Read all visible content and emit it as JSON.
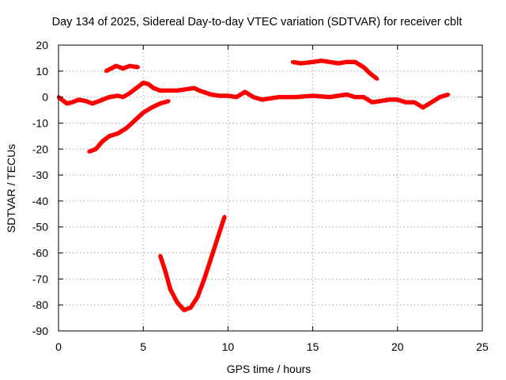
{
  "chart_data": {
    "type": "scatter",
    "title": "Day 134 of 2025, Sidereal Day-to-day VTEC variation (SDTVAR) for receiver cblt",
    "xlabel": "GPS time / hours",
    "ylabel": "SDTVAR / TECUs",
    "xlim": [
      0,
      25
    ],
    "ylim": [
      -90,
      20
    ],
    "xticks": [
      0,
      5,
      10,
      15,
      20,
      25
    ],
    "yticks": [
      20,
      10,
      0,
      -10,
      -20,
      -30,
      -40,
      -50,
      -60,
      -70,
      -80,
      -90
    ],
    "grid": true,
    "series_color": "#ff0000",
    "series": [
      {
        "name": "main",
        "points": [
          [
            0,
            0
          ],
          [
            0.2,
            -1
          ],
          [
            0.5,
            -2.5
          ],
          [
            0.8,
            -2
          ],
          [
            1.2,
            -1
          ],
          [
            1.6,
            -1.5
          ],
          [
            2.0,
            -2.5
          ],
          [
            2.4,
            -1.5
          ],
          [
            3.0,
            0
          ],
          [
            3.5,
            0.5
          ],
          [
            3.8,
            0
          ],
          [
            4.2,
            1.5
          ],
          [
            4.6,
            3.5
          ],
          [
            5.0,
            5.5
          ],
          [
            5.3,
            5
          ],
          [
            5.6,
            3.5
          ],
          [
            6.0,
            2.5
          ],
          [
            7.0,
            2.5
          ],
          [
            7.5,
            3
          ],
          [
            8.0,
            3.5
          ],
          [
            8.3,
            2.5
          ],
          [
            9.0,
            1
          ],
          [
            9.5,
            0.5
          ],
          [
            10.0,
            0.5
          ],
          [
            10.5,
            0
          ],
          [
            11.0,
            2
          ],
          [
            11.5,
            0
          ],
          [
            12.0,
            -1
          ],
          [
            13.0,
            0
          ],
          [
            14.0,
            0
          ],
          [
            15.0,
            0.5
          ],
          [
            16.0,
            0
          ],
          [
            17.0,
            1
          ],
          [
            17.5,
            0
          ],
          [
            18.0,
            0
          ],
          [
            18.5,
            -2
          ],
          [
            19.0,
            -1.5
          ],
          [
            19.5,
            -1
          ],
          [
            20.0,
            -1
          ],
          [
            20.5,
            -2
          ],
          [
            21.0,
            -2
          ],
          [
            21.5,
            -4
          ],
          [
            22.0,
            -2
          ],
          [
            22.5,
            0
          ],
          [
            23.0,
            1
          ]
        ]
      },
      {
        "name": "rising",
        "points": [
          [
            1.8,
            -21
          ],
          [
            2.2,
            -20
          ],
          [
            2.6,
            -17
          ],
          [
            3.0,
            -15
          ],
          [
            3.5,
            -14
          ],
          [
            4.0,
            -12
          ],
          [
            4.5,
            -9
          ],
          [
            5.0,
            -6
          ],
          [
            5.5,
            -4
          ],
          [
            6.0,
            -2.5
          ],
          [
            6.5,
            -1.5
          ]
        ]
      },
      {
        "name": "upper-left",
        "points": [
          [
            2.8,
            10
          ],
          [
            3.1,
            11
          ],
          [
            3.4,
            12
          ],
          [
            3.8,
            11
          ],
          [
            4.2,
            12
          ],
          [
            4.7,
            11.5
          ]
        ]
      },
      {
        "name": "upper-right",
        "points": [
          [
            13.8,
            13.5
          ],
          [
            14.3,
            13
          ],
          [
            15.0,
            13.5
          ],
          [
            15.5,
            14
          ],
          [
            16.0,
            13.5
          ],
          [
            16.5,
            13
          ],
          [
            17.0,
            13.5
          ],
          [
            17.5,
            13.5
          ],
          [
            18.0,
            11.5
          ],
          [
            18.4,
            9
          ],
          [
            18.8,
            7
          ]
        ]
      },
      {
        "name": "deep-dip",
        "points": [
          [
            6.0,
            -61
          ],
          [
            6.3,
            -67
          ],
          [
            6.6,
            -74
          ],
          [
            7.0,
            -79
          ],
          [
            7.4,
            -82
          ],
          [
            7.8,
            -81
          ],
          [
            8.2,
            -77
          ],
          [
            8.6,
            -70
          ],
          [
            9.0,
            -62
          ],
          [
            9.4,
            -54
          ],
          [
            9.8,
            -46
          ]
        ]
      }
    ]
  }
}
